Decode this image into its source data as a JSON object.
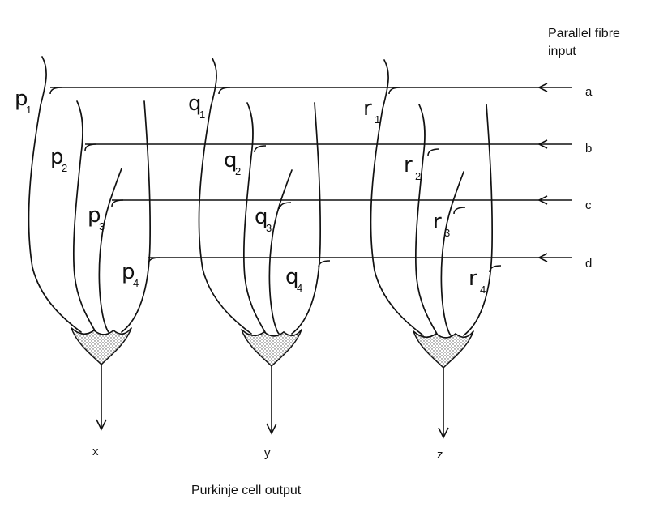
{
  "parallel_fibre_title": [
    "Parallel fibre",
    "input"
  ],
  "input_labels": [
    "a",
    "b",
    "c",
    "d"
  ],
  "output_labels": [
    "x",
    "y",
    "z"
  ],
  "output_title": "Purkinje cell output",
  "synapse_letters": [
    "p",
    "q",
    "r"
  ],
  "synapse_indices": [
    "1",
    "2",
    "3",
    "4"
  ]
}
